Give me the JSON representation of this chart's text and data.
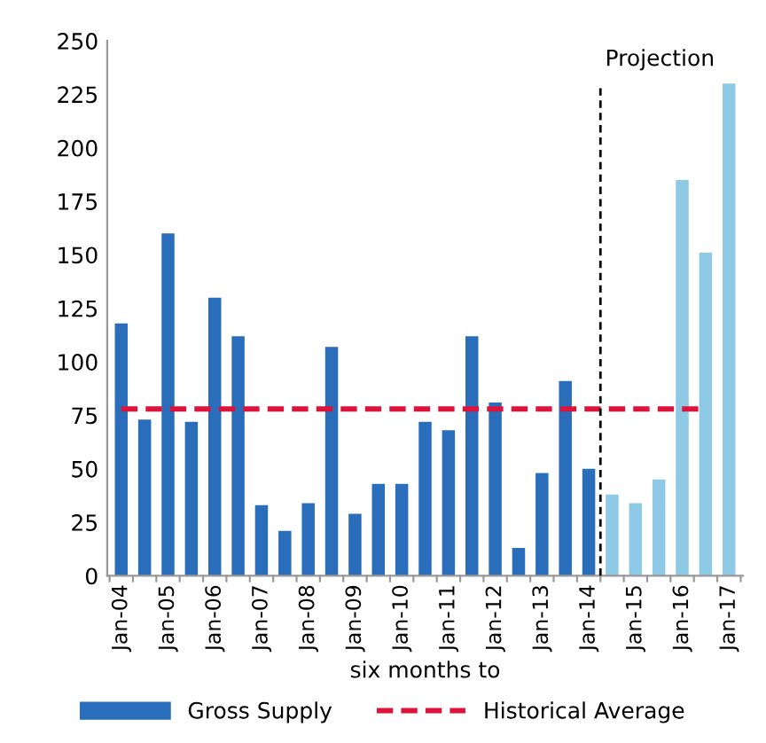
{
  "chart_data": {
    "type": "bar",
    "xlabel": "six months to",
    "categories": [
      "Jan-04",
      null,
      "Jan-05",
      null,
      "Jan-06",
      null,
      "Jan-07",
      null,
      "Jan-08",
      null,
      "Jan-09",
      null,
      "Jan-10",
      null,
      "Jan-11",
      null,
      "Jan-12",
      null,
      "Jan-13",
      null,
      "Jan-14",
      null,
      "Jan-15",
      null,
      "Jan-16",
      null,
      "Jan-17"
    ],
    "series": [
      {
        "name": "Gross Supply",
        "color": "#2a6ebb",
        "colors": [
          "#2a6ebb",
          "#2a6ebb",
          "#2a6ebb",
          "#2a6ebb",
          "#2a6ebb",
          "#2a6ebb",
          "#2a6ebb",
          "#2a6ebb",
          "#2a6ebb",
          "#2a6ebb",
          "#2a6ebb",
          "#2a6ebb",
          "#2a6ebb",
          "#2a6ebb",
          "#2a6ebb",
          "#2a6ebb",
          "#2a6ebb",
          "#2a6ebb",
          "#2a6ebb",
          "#2a6ebb",
          "#2a6ebb",
          "#8ecae6",
          "#8ecae6",
          "#8ecae6",
          "#8ecae6",
          "#8ecae6",
          "#8ecae6"
        ],
        "values": [
          118,
          73,
          160,
          72,
          130,
          112,
          33,
          21,
          34,
          107,
          29,
          43,
          43,
          72,
          68,
          112,
          81,
          13,
          48,
          91,
          50,
          38,
          34,
          45,
          185,
          151,
          230
        ]
      },
      {
        "name": "Historical Average",
        "color": "#dc143c",
        "type": "line",
        "line_style": "dashed",
        "values": [
          78,
          78,
          78,
          78,
          78,
          78,
          78,
          78,
          78,
          78,
          78,
          78,
          78,
          78,
          78,
          78,
          78,
          78,
          78,
          78,
          78,
          78,
          78,
          78,
          78,
          78,
          null
        ]
      }
    ],
    "annotations": [
      "Projection"
    ],
    "ylim": [
      0,
      250
    ],
    "yticks": [
      0,
      25,
      50,
      75,
      100,
      125,
      150,
      175,
      200,
      225,
      250
    ],
    "grid": false,
    "legend": "bottom",
    "marker": "none"
  }
}
